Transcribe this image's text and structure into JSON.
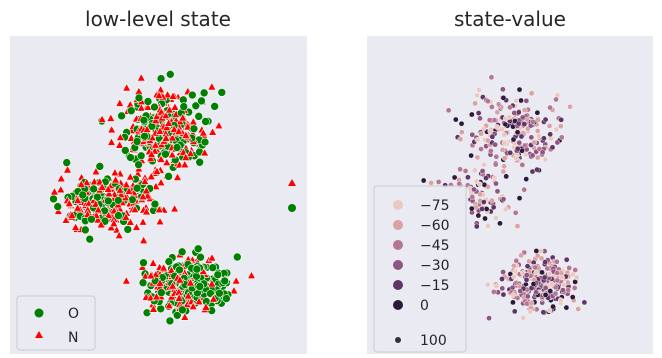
{
  "chart_data": [
    {
      "type": "scatter",
      "title": "low-level state",
      "xlabel": "",
      "ylabel": "",
      "grid": true,
      "legend_position": "bottom-left",
      "series": [
        {
          "name": "O",
          "marker": "circle",
          "color": "#008000"
        },
        {
          "name": "N",
          "marker": "triangle",
          "color": "#ff0000"
        }
      ]
    },
    {
      "type": "scatter",
      "title": "state-value",
      "xlabel": "",
      "ylabel": "",
      "grid": true,
      "legend_position": "lower-left",
      "hue_legend": {
        "labels": [
          "−75",
          "−60",
          "−45",
          "−30",
          "−15",
          "0"
        ],
        "values": [
          -75,
          -60,
          -45,
          -30,
          -15,
          0
        ],
        "colors": [
          "#ecc8c2",
          "#d9a2a3",
          "#b57692",
          "#8f5583",
          "#5f3565",
          "#2b1a3c"
        ]
      },
      "size_legend": {
        "labels": [
          "100"
        ],
        "values": [
          100
        ]
      }
    }
  ]
}
